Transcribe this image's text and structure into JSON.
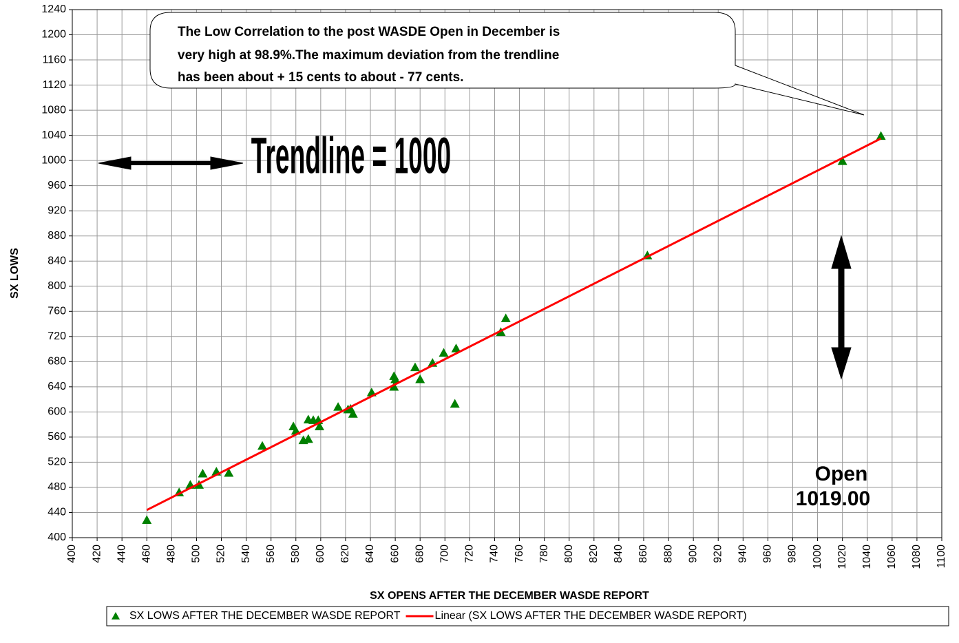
{
  "chart_data": {
    "type": "scatter",
    "xlabel": "SX OPENS AFTER THE DECEMBER WASDE REPORT",
    "ylabel": "SX LOWS",
    "annotations": {
      "callout": [
        "The Low Correlation to the post WASDE Open in December is",
        "very high at 98.9%.The maximum deviation from the trendline",
        "has been about + 15 cents to about - 77 cents."
      ],
      "trendline": "Trendline = 1000",
      "open_label": "Open",
      "open_value": "1019.00"
    },
    "xlim": [
      400,
      1100
    ],
    "ylim": [
      400,
      1240
    ],
    "xticks": [
      400,
      420,
      440,
      460,
      480,
      500,
      520,
      540,
      560,
      580,
      600,
      620,
      640,
      660,
      680,
      700,
      720,
      740,
      760,
      780,
      800,
      820,
      840,
      860,
      880,
      900,
      920,
      940,
      960,
      980,
      1000,
      1020,
      1040,
      1060,
      1080,
      1100
    ],
    "yticks": [
      400,
      440,
      480,
      520,
      560,
      600,
      640,
      680,
      720,
      760,
      800,
      840,
      880,
      920,
      960,
      1000,
      1040,
      1080,
      1120,
      1160,
      1200,
      1240
    ],
    "grid": true,
    "legend": "bottom",
    "series": [
      {
        "name": "SX LOWS AFTER THE DECEMBER WASDE REPORT",
        "color": "#008000",
        "mode": "markers",
        "x": [
          460,
          486,
          495,
          502,
          505,
          516,
          526,
          553,
          578,
          580,
          586,
          590,
          590,
          594,
          598,
          599,
          614,
          622,
          624,
          626,
          641,
          659,
          659,
          660,
          676,
          680,
          690,
          699,
          708,
          709,
          745,
          749,
          863,
          1020,
          1051
        ],
        "values": [
          428,
          472,
          484,
          484,
          502,
          505,
          503,
          546,
          577,
          570,
          555,
          557,
          588,
          587,
          587,
          577,
          608,
          604,
          605,
          597,
          631,
          657,
          640,
          652,
          671,
          652,
          678,
          694,
          613,
          701,
          727,
          749,
          849,
          999,
          1039
        ]
      },
      {
        "name": "Linear (SX LOWS AFTER THE DECEMBER WASDE REPORT)",
        "color": "#ff0000",
        "mode": "line",
        "x": [
          460,
          1051
        ],
        "values": [
          444,
          1035
        ]
      }
    ]
  }
}
